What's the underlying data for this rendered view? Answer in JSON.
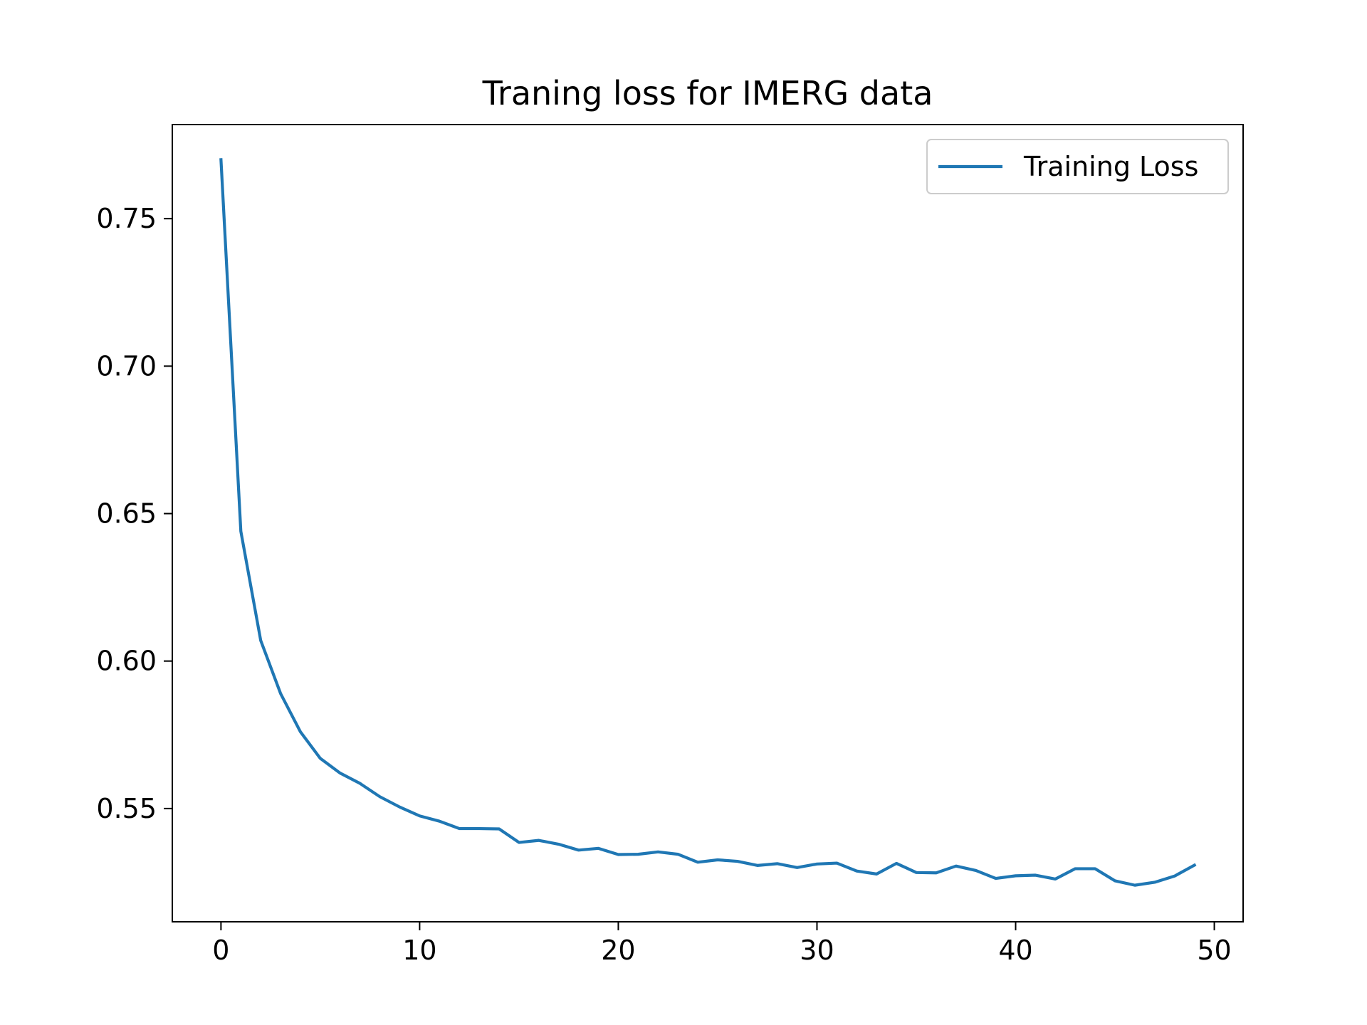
{
  "chart_data": {
    "type": "line",
    "title": "Traning loss for IMERG data",
    "xlabel": "",
    "ylabel": "",
    "xlim": [
      -2.45,
      51.45
    ],
    "ylim": [
      0.5116,
      0.7819
    ],
    "xticks": [
      0,
      10,
      20,
      30,
      40,
      50
    ],
    "xtick_labels": [
      "0",
      "10",
      "20",
      "30",
      "40",
      "50"
    ],
    "yticks": [
      0.55,
      0.6,
      0.65,
      0.7,
      0.75
    ],
    "ytick_labels": [
      "0.55",
      "0.60",
      "0.65",
      "0.70",
      "0.75"
    ],
    "grid": false,
    "legend": {
      "placement": "upper right",
      "entries": [
        "Training Loss"
      ]
    },
    "series": [
      {
        "name": "Training Loss",
        "color": "#1f77b4",
        "x": [
          0,
          1,
          2,
          3,
          4,
          5,
          6,
          7,
          8,
          9,
          10,
          11,
          12,
          13,
          14,
          15,
          16,
          17,
          18,
          19,
          20,
          21,
          22,
          23,
          24,
          25,
          26,
          27,
          28,
          29,
          30,
          31,
          32,
          33,
          34,
          35,
          36,
          37,
          38,
          39,
          40,
          41,
          42,
          43,
          44,
          45,
          46,
          47,
          48,
          49
        ],
        "y": [
          0.77,
          0.644,
          0.607,
          0.589,
          0.576,
          0.567,
          0.562,
          0.5585,
          0.554,
          0.5505,
          0.5475,
          0.5457,
          0.5432,
          0.5432,
          0.5431,
          0.5385,
          0.5392,
          0.5379,
          0.5359,
          0.5365,
          0.5344,
          0.5345,
          0.5353,
          0.5345,
          0.5318,
          0.5326,
          0.5321,
          0.5307,
          0.5313,
          0.53,
          0.5312,
          0.5315,
          0.5288,
          0.5278,
          0.5314,
          0.5283,
          0.5282,
          0.5305,
          0.529,
          0.5263,
          0.5272,
          0.5274,
          0.5261,
          0.5296,
          0.5296,
          0.5255,
          0.524,
          0.525,
          0.5271,
          0.5308
        ]
      }
    ]
  }
}
